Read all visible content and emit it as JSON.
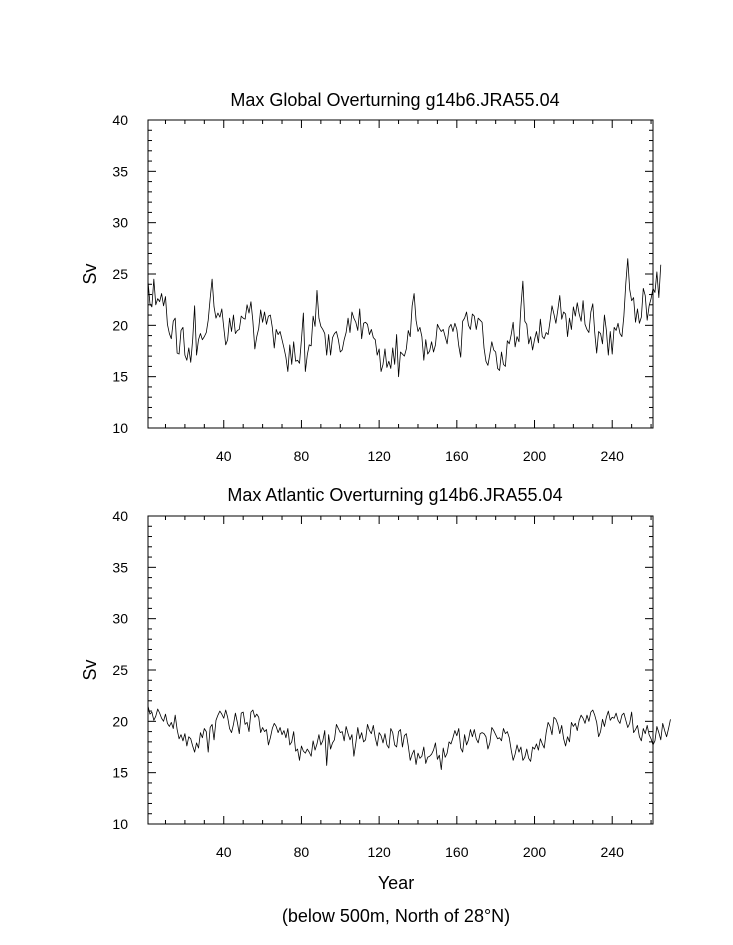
{
  "chart_data": [
    {
      "type": "line",
      "title": "Max Global Overturning g14b6.JRA55.04",
      "xlabel": "",
      "ylabel": "Sv",
      "xlim": [
        1,
        261
      ],
      "ylim": [
        10,
        40
      ],
      "xticks": [
        40,
        80,
        120,
        160,
        200,
        240
      ],
      "yticks": [
        10,
        15,
        20,
        25,
        30,
        35,
        40
      ],
      "grid": false,
      "series": [
        {
          "values": [
            24.3,
            22.1,
            21.8,
            24.5,
            22.0,
            22.6,
            22.3,
            23.1,
            21.9,
            22.8,
            20.1,
            19.2,
            18.7,
            20.4,
            20.7,
            17.3,
            17.2,
            19.5,
            19.8,
            17.1,
            16.6,
            17.8,
            16.4,
            18.6,
            21.9,
            17.1,
            18.6,
            19.2,
            18.6,
            18.9,
            19.3,
            20.5,
            22.6,
            24.5,
            21.8,
            20.7,
            21.2,
            20.8,
            21.6,
            19.8,
            18.1,
            18.6,
            20.7,
            19.4,
            21.0,
            19.2,
            19.5,
            19.6,
            20.9,
            20.7,
            20.6,
            22.0,
            21.2,
            22.3,
            20.4,
            17.7,
            18.9,
            19.7,
            21.5,
            20.3,
            21.3,
            20.1,
            20.9,
            21.0,
            19.8,
            17.8,
            19.6,
            19.1,
            19.4,
            18.6,
            17.8,
            16.9,
            15.5,
            18.1,
            16.2,
            18.4,
            16.5,
            16.6,
            16.3,
            18.6,
            21.2,
            15.5,
            17.1,
            18.1,
            18.0,
            20.9,
            19.9,
            23.4,
            20.7,
            19.9,
            19.6,
            19.2,
            17.1,
            19.1,
            17.1,
            18.8,
            19.2,
            19.4,
            18.6,
            17.4,
            17.6,
            18.6,
            19.3,
            20.7,
            19.3,
            21.3,
            20.7,
            20.3,
            19.5,
            21.6,
            18.7,
            20.2,
            20.3,
            20.1,
            19.1,
            19.6,
            18.8,
            18.6,
            17.1,
            17.7,
            15.5,
            16.2,
            17.7,
            15.9,
            16.5,
            15.8,
            17.8,
            16.2,
            19.1,
            15.0,
            17.4,
            17.2,
            17.0,
            17.7,
            19.5,
            18.9,
            21.9,
            23.1,
            20.5,
            19.4,
            19.8,
            18.9,
            16.6,
            18.6,
            17.2,
            17.5,
            18.4,
            17.4,
            18.1,
            20.1,
            19.7,
            19.4,
            19.6,
            18.9,
            18.2,
            19.8,
            20.1,
            19.4,
            20.2,
            19.6,
            18.0,
            16.9,
            20.4,
            20.7,
            21.3,
            20.0,
            19.6,
            21.1,
            20.9,
            19.6,
            20.7,
            20.5,
            20.3,
            17.8,
            16.5,
            16.1,
            17.2,
            18.4,
            17.6,
            17.4,
            15.8,
            15.6,
            17.4,
            16.2,
            16.0,
            18.5,
            18.2,
            19.1,
            20.3,
            17.9,
            18.9,
            18.4,
            21.8,
            24.3,
            20.4,
            20.1,
            18.2,
            18.9,
            17.6,
            18.6,
            19.4,
            18.3,
            20.6,
            18.9,
            18.7,
            19.3,
            19.1,
            20.4,
            21.9,
            21.1,
            20.2,
            21.5,
            22.9,
            20.6,
            21.3,
            21.1,
            18.9,
            20.7,
            19.6,
            21.8,
            20.9,
            22.2,
            21.1,
            20.4,
            22.4,
            20.1,
            19.6,
            19.3,
            21.3,
            22.1,
            19.3,
            17.3,
            19.4,
            19.2,
            18.2,
            21.0,
            19.5,
            17.1,
            19.4,
            17.2,
            19.8,
            19.5,
            20.2,
            19.2,
            18.9,
            20.9,
            24.1,
            26.5,
            23.5,
            22.4,
            22.7,
            20.3,
            21.6,
            20.2,
            20.8,
            23.6,
            22.9,
            20.5,
            21.9,
            22.6,
            23.6,
            23.2,
            25.2,
            22.7,
            25.9
          ]
        }
      ]
    },
    {
      "type": "line",
      "title": "Max Atlantic Overturning g14b6.JRA55.04",
      "xlabel": "Year",
      "ylabel": "Sv",
      "xlim": [
        1,
        261
      ],
      "ylim": [
        10,
        40
      ],
      "xticks": [
        40,
        80,
        120,
        160,
        200,
        240
      ],
      "yticks": [
        10,
        15,
        20,
        25,
        30,
        35,
        40
      ],
      "grid": false,
      "series": [
        {
          "values": [
            21.5,
            20.7,
            20.9,
            20.1,
            20.5,
            21.2,
            20.8,
            20.3,
            20.0,
            20.7,
            19.8,
            19.5,
            19.9,
            19.3,
            20.6,
            19.2,
            18.3,
            18.7,
            18.1,
            18.8,
            17.6,
            18.5,
            18.3,
            17.6,
            17.0,
            17.9,
            17.4,
            18.9,
            18.4,
            19.3,
            19.0,
            17.0,
            19.4,
            19.7,
            18.2,
            20.1,
            20.6,
            21.0,
            20.7,
            20.3,
            21.1,
            20.4,
            19.3,
            18.9,
            19.7,
            20.8,
            19.9,
            18.8,
            20.8,
            20.9,
            19.7,
            19.9,
            19.0,
            20.9,
            21.1,
            20.4,
            20.7,
            20.4,
            18.9,
            19.4,
            19.0,
            19.2,
            17.7,
            18.4,
            19.3,
            19.8,
            19.5,
            18.9,
            19.4,
            18.7,
            19.1,
            18.4,
            19.3,
            17.7,
            18.0,
            19.0,
            17.1,
            17.3,
            16.2,
            17.6,
            17.1,
            16.9,
            17.3,
            17.0,
            16.6,
            18.1,
            17.2,
            17.8,
            18.7,
            17.7,
            18.1,
            19.1,
            15.7,
            18.7,
            17.3,
            17.9,
            18.2,
            19.7,
            19.3,
            18.9,
            19.0,
            18.1,
            19.5,
            18.8,
            18.2,
            18.7,
            16.6,
            17.9,
            19.4,
            18.3,
            18.9,
            18.0,
            18.2,
            19.7,
            19.1,
            18.8,
            19.6,
            18.4,
            17.6,
            18.9,
            18.6,
            17.9,
            18.8,
            17.7,
            17.4,
            19.3,
            18.9,
            17.7,
            17.5,
            19.0,
            19.2,
            17.5,
            18.6,
            18.8,
            17.6,
            16.2,
            16.8,
            17.2,
            15.8,
            16.9,
            16.4,
            16.6,
            17.5,
            15.9,
            16.5,
            16.6,
            16.8,
            17.2,
            17.9,
            16.3,
            16.7,
            15.3,
            17.4,
            16.5,
            16.9,
            18.0,
            17.8,
            18.4,
            19.1,
            18.6,
            19.3,
            17.4,
            17.0,
            18.7,
            17.7,
            18.2,
            19.2,
            18.5,
            19.2,
            18.3,
            17.9,
            18.8,
            18.9,
            18.8,
            18.5,
            17.3,
            17.9,
            19.4,
            19.1,
            18.7,
            18.3,
            18.4,
            18.1,
            19.3,
            18.8,
            19.0,
            18.4,
            17.2,
            16.2,
            16.8,
            17.7,
            17.0,
            17.5,
            16.2,
            16.5,
            17.3,
            16.4,
            16.1,
            17.5,
            17.3,
            17.8,
            17.2,
            18.3,
            17.8,
            17.4,
            18.9,
            19.9,
            19.5,
            18.7,
            20.4,
            20.2,
            19.7,
            18.8,
            19.6,
            18.3,
            17.6,
            18.5,
            18.0,
            19.9,
            19.5,
            19.8,
            19.1,
            20.1,
            20.6,
            20.3,
            19.8,
            20.6,
            20.0,
            20.9,
            21.1,
            20.6,
            19.9,
            18.5,
            19.0,
            20.2,
            19.5,
            20.4,
            21.0,
            20.1,
            20.4,
            20.3,
            20.8,
            20.1,
            19.8,
            20.6,
            20.8,
            20.1,
            19.4,
            19.8,
            20.9,
            18.9,
            19.2,
            19.6,
            18.5,
            18.1,
            19.3,
            18.8,
            19.6,
            18.7,
            18.3,
            17.7,
            18.1,
            19.5,
            18.9,
            18.2,
            19.8,
            19.1,
            18.5,
            19.3,
            20.2
          ]
        }
      ]
    }
  ],
  "footnote": "(below 500m, North of 28°N)"
}
